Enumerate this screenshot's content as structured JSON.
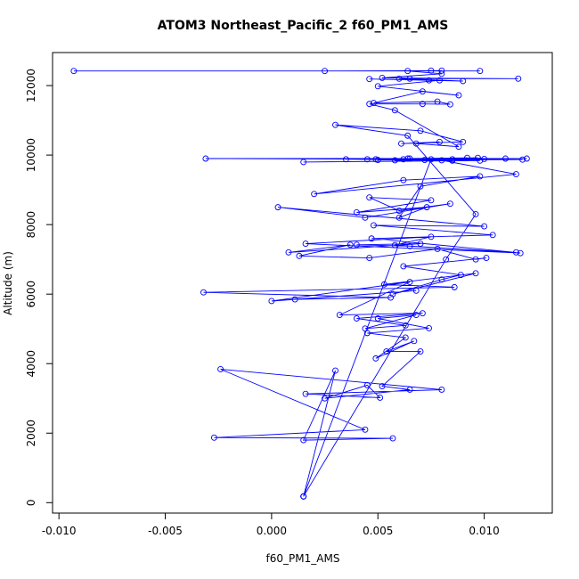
{
  "chart_data": {
    "type": "line",
    "title": "ATOM3 Northeast_Pacific_2 f60_PM1_AMS",
    "xlabel": "f60_PM1_AMS",
    "ylabel": "Altitude (m)",
    "xlim": [
      -0.0103,
      0.0132
    ],
    "ylim": [
      -300,
      12950
    ],
    "xticks": [
      -0.01,
      -0.005,
      0.0,
      0.005,
      0.01
    ],
    "xtick_labels": [
      "-0.010",
      "-0.005",
      "0.000",
      "0.005",
      "0.010"
    ],
    "yticks": [
      0,
      2000,
      4000,
      6000,
      8000,
      10000,
      12000
    ],
    "ytick_labels": [
      "0",
      "2000",
      "4000",
      "6000",
      "8000",
      "10000",
      "12000"
    ],
    "grid": false,
    "markers": "open-circle",
    "series": [
      {
        "color": "#0000ff",
        "points": [
          [
            0.0015,
            180
          ],
          [
            0.0015,
            180
          ],
          [
            0.0075,
            9880
          ],
          [
            0.012,
            9900
          ],
          [
            -0.0031,
            9900
          ],
          [
            0.0062,
            9880
          ],
          [
            0.0085,
            9840
          ],
          [
            0.0015,
            9800
          ],
          [
            0.0098,
            9840
          ],
          [
            0.0065,
            9900
          ],
          [
            0.011,
            9900
          ],
          [
            0.0045,
            9880
          ],
          [
            0.0092,
            9920
          ],
          [
            0.0058,
            9850
          ],
          [
            0.01,
            9890
          ],
          [
            0.005,
            9860
          ],
          [
            0.0085,
            9880
          ],
          [
            0.0035,
            9880
          ],
          [
            0.0072,
            9860
          ],
          [
            0.0118,
            9870
          ],
          [
            0.0064,
            9900
          ],
          [
            0.0097,
            9920
          ],
          [
            0.0049,
            9880
          ],
          [
            0.008,
            9850
          ],
          [
            0.0115,
            9450
          ],
          [
            0.002,
            8880
          ],
          [
            0.0062,
            9280
          ],
          [
            0.0098,
            9390
          ],
          [
            0.007,
            9100
          ],
          [
            0.006,
            8200
          ],
          [
            0.0073,
            8500
          ],
          [
            0.004,
            8350
          ],
          [
            0.0075,
            8700
          ],
          [
            0.0046,
            8780
          ],
          [
            0.006,
            8400
          ],
          [
            0.0084,
            8600
          ],
          [
            0.0044,
            8200
          ],
          [
            0.0003,
            8500
          ],
          [
            0.01,
            7950
          ],
          [
            0.0048,
            7980
          ],
          [
            0.0104,
            7700
          ],
          [
            0.0047,
            7600
          ],
          [
            0.0115,
            7200
          ],
          [
            0.0058,
            7410
          ],
          [
            0.0075,
            7650
          ],
          [
            0.0016,
            7450
          ],
          [
            0.0117,
            7180
          ],
          [
            0.0065,
            7380
          ],
          [
            0.004,
            7420
          ],
          [
            0.007,
            7450
          ],
          [
            0.0008,
            7200
          ],
          [
            0.0037,
            7420
          ],
          [
            0.0013,
            7100
          ],
          [
            0.0046,
            7040
          ],
          [
            0.0078,
            7300
          ],
          [
            0.0096,
            7000
          ],
          [
            0.0101,
            7040
          ],
          [
            0.0062,
            6800
          ],
          [
            0.0089,
            6550
          ],
          [
            0.008,
            6420
          ],
          [
            0.0057,
            6000
          ],
          [
            0.0096,
            6600
          ],
          [
            0.0053,
            6280
          ],
          [
            0.0086,
            6200
          ],
          [
            -0.0032,
            6050
          ],
          [
            0.0056,
            5900
          ],
          [
            0.0011,
            5850
          ],
          [
            0.0068,
            6100
          ],
          [
            0.0,
            5800
          ],
          [
            0.0065,
            6350
          ],
          [
            0.0032,
            5400
          ],
          [
            0.0071,
            5450
          ],
          [
            0.004,
            5300
          ],
          [
            0.0063,
            5100
          ],
          [
            0.0044,
            5010
          ],
          [
            0.0068,
            5400
          ],
          [
            0.005,
            5300
          ],
          [
            0.0074,
            5020
          ],
          [
            0.0045,
            4880
          ],
          [
            0.0063,
            4750
          ],
          [
            0.0049,
            4150
          ],
          [
            0.0067,
            4650
          ],
          [
            0.0054,
            4350
          ],
          [
            0.007,
            4350
          ],
          [
            0.0052,
            3350
          ],
          [
            0.0065,
            3250
          ],
          [
            0.0025,
            3000
          ],
          [
            0.0045,
            3380
          ],
          [
            0.0051,
            3020
          ],
          [
            0.0016,
            3130
          ],
          [
            0.008,
            3250
          ],
          [
            -0.0024,
            3840
          ],
          [
            0.0044,
            2100
          ],
          [
            -0.0027,
            1870
          ],
          [
            0.0057,
            1850
          ],
          [
            0.0015,
            1800
          ],
          [
            0.003,
            3800
          ],
          [
            0.0015,
            180
          ],
          [
            0.0082,
            7000
          ],
          [
            0.0096,
            8300
          ],
          [
            0.0064,
            10560
          ],
          [
            0.003,
            10870
          ],
          [
            0.007,
            10700
          ],
          [
            0.009,
            10380
          ],
          [
            0.0061,
            10330
          ],
          [
            0.0079,
            10380
          ],
          [
            0.0068,
            10330
          ],
          [
            0.0088,
            10240
          ],
          [
            0.0058,
            11290
          ],
          [
            0.0046,
            11470
          ],
          [
            0.0071,
            11470
          ],
          [
            0.0084,
            11460
          ],
          [
            0.0078,
            11540
          ],
          [
            0.0048,
            11500
          ],
          [
            0.0071,
            11830
          ],
          [
            0.0088,
            11720
          ],
          [
            0.005,
            11980
          ],
          [
            0.0079,
            12150
          ],
          [
            0.006,
            12200
          ],
          [
            0.009,
            12130
          ],
          [
            0.0046,
            12190
          ],
          [
            0.0074,
            12150
          ],
          [
            0.0065,
            12200
          ],
          [
            0.0116,
            12200
          ],
          [
            0.0052,
            12220
          ],
          [
            0.008,
            12340
          ],
          [
            0.0064,
            12420
          ],
          [
            0.0098,
            12420
          ],
          [
            -0.0093,
            12420
          ],
          [
            0.0025,
            12420
          ],
          [
            0.0075,
            12430
          ],
          [
            0.008,
            12430
          ]
        ]
      }
    ]
  }
}
